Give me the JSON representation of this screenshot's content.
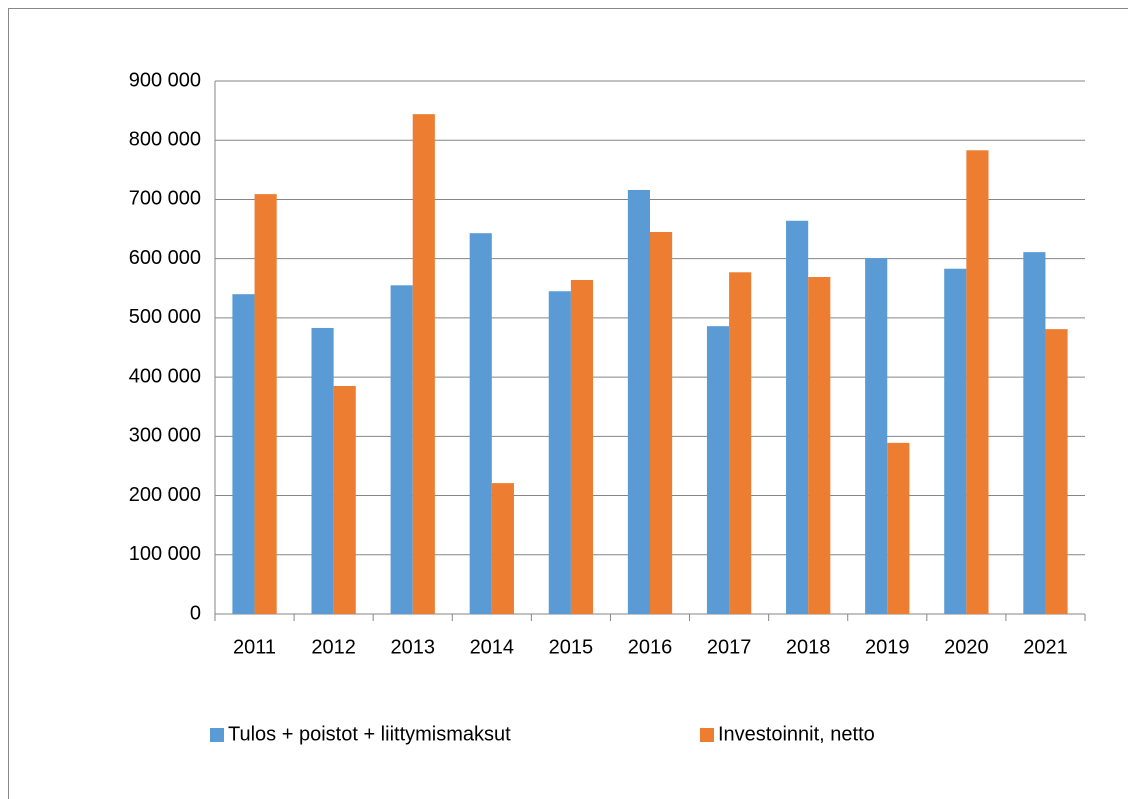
{
  "chart_data": {
    "type": "bar",
    "categories": [
      "2011",
      "2012",
      "2013",
      "2014",
      "2015",
      "2016",
      "2017",
      "2018",
      "2019",
      "2020",
      "2021"
    ],
    "series": [
      {
        "name": "Tulos + poistot + liittymismaksut",
        "color": "#5b9bd5",
        "values": [
          540000,
          483000,
          555000,
          643000,
          545000,
          716000,
          486000,
          664000,
          601000,
          583000,
          611000
        ]
      },
      {
        "name": "Investoinnit, netto",
        "color": "#ed7d31",
        "values": [
          709000,
          385000,
          844000,
          221000,
          564000,
          645000,
          577000,
          569000,
          289000,
          783000,
          481000
        ]
      }
    ],
    "ylim": [
      0,
      900000
    ],
    "yticks": [
      0,
      {
        "value": 100000,
        "label": "100 000"
      },
      {
        "value": 200000,
        "label": "200 000"
      },
      {
        "value": 300000,
        "label": "300 000"
      },
      {
        "value": 400000,
        "label": "400 000"
      },
      {
        "value": 500000,
        "label": "500 000"
      },
      {
        "value": 600000,
        "label": "600 000"
      },
      {
        "value": 700000,
        "label": "700 000"
      },
      {
        "value": 800000,
        "label": "800 000"
      },
      {
        "value": 900000,
        "label": "900 000"
      }
    ],
    "grid": true,
    "legend": "bottom"
  }
}
